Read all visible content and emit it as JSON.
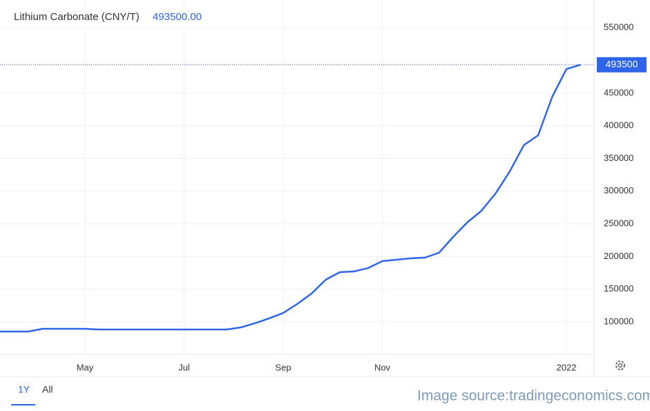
{
  "chart_data": {
    "type": "line",
    "title": "Lithium Carbonate (CNY/T)",
    "title_value": "493500.00",
    "last_value": 493500,
    "categories": [
      null,
      null,
      null,
      null,
      null,
      null,
      "May",
      null,
      null,
      null,
      null,
      null,
      null,
      "Jul",
      null,
      null,
      null,
      null,
      null,
      null,
      "Sep",
      null,
      null,
      null,
      null,
      null,
      null,
      "Nov",
      null,
      null,
      null,
      null,
      null,
      null,
      null,
      null,
      null,
      null,
      null,
      null,
      "2022",
      null
    ],
    "series": [
      {
        "name": "Lithium Carbonate",
        "color": "#2e64e8",
        "values": [
          85200,
          85200,
          85200,
          89400,
          89400,
          89400,
          89400,
          88400,
          88400,
          88400,
          88400,
          88400,
          88400,
          88400,
          88400,
          88400,
          88400,
          91500,
          97900,
          105300,
          113700,
          127500,
          143300,
          164500,
          176100,
          177200,
          182400,
          193000,
          195100,
          197200,
          198300,
          205700,
          230000,
          252200,
          270200,
          296600,
          330400,
          370600,
          385400,
          444600,
          486900,
          493500
        ]
      }
    ],
    "ylim": [
      50300,
      592600
    ],
    "yticks": [
      100000,
      150000,
      200000,
      250000,
      300000,
      350000,
      400000,
      450000,
      550000
    ],
    "grid": true,
    "ranges": [
      "1Y",
      "All"
    ],
    "source": "Image source:tradingeconomics.com"
  }
}
